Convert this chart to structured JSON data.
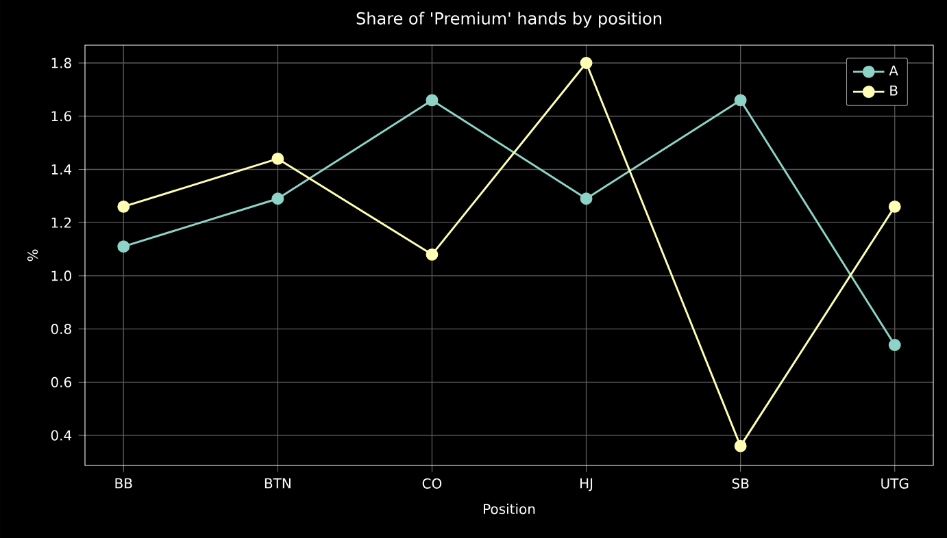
{
  "chart_data": {
    "type": "line",
    "title": "Share of 'Premium' hands by position",
    "xlabel": "Position",
    "ylabel": "%",
    "categories": [
      "BB",
      "BTN",
      "CO",
      "HJ",
      "SB",
      "UTG"
    ],
    "series": [
      {
        "name": "A",
        "color": "#8dd3c7",
        "values": [
          1.11,
          1.29,
          1.66,
          1.29,
          1.66,
          0.74
        ]
      },
      {
        "name": "B",
        "color": "#feffb3",
        "values": [
          1.26,
          1.44,
          1.08,
          1.8,
          0.36,
          1.26
        ]
      }
    ],
    "ylim": [
      0.287,
      1.867
    ],
    "yticks": [
      0.4,
      0.6,
      0.8,
      {
        "value": 1.0,
        "label": "1.0"
      },
      1.2,
      1.4,
      1.6,
      1.8
    ],
    "grid": true,
    "legend": "top right",
    "marker": "circle",
    "line_style": "solid"
  }
}
